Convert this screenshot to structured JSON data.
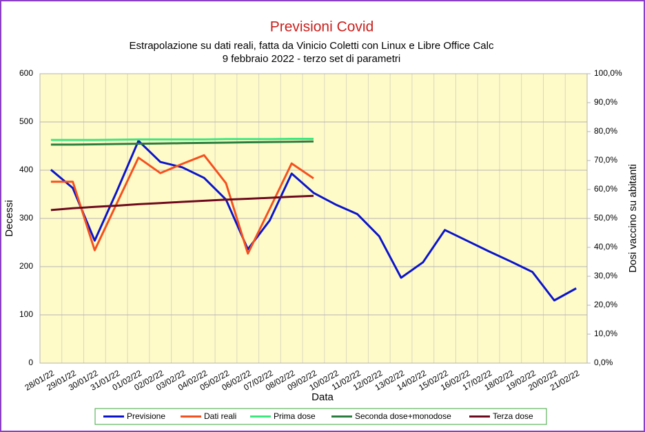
{
  "chart_data": {
    "type": "line",
    "title": "Previsioni Covid",
    "subtitle": "Estrapolazione su dati reali, fatta da Vinicio Coletti con Linux e Libre Office Calc",
    "subtitle2": "9 febbraio 2022 - terzo set di parametri",
    "x_label": "Data",
    "y_label": "Decessi",
    "y2_label": "Dosi vaccino su abitanti",
    "categories": [
      "28/01/22",
      "29/01/22",
      "30/01/22",
      "31/01/22",
      "01/02/22",
      "02/02/22",
      "03/02/22",
      "04/02/22",
      "05/02/22",
      "06/02/22",
      "07/02/22",
      "08/02/22",
      "09/02/22",
      "10/02/22",
      "11/02/22",
      "12/02/22",
      "13/02/22",
      "14/02/22",
      "15/02/22",
      "16/02/22",
      "17/02/22",
      "18/02/22",
      "19/02/22",
      "20/02/22",
      "21/02/22"
    ],
    "ylim": [
      0,
      600
    ],
    "yticks": [
      0,
      100,
      200,
      300,
      400,
      500,
      600
    ],
    "y2lim": [
      0,
      100
    ],
    "y2ticks": [
      {
        "value": 0,
        "label": "0,0%"
      },
      {
        "value": 10,
        "label": "10,0%"
      },
      {
        "value": 20,
        "label": "20,0%"
      },
      {
        "value": 30,
        "label": "30,0%"
      },
      {
        "value": 40,
        "label": "40,0%"
      },
      {
        "value": 50,
        "label": "50,0%"
      },
      {
        "value": 60,
        "label": "60,0%"
      },
      {
        "value": 70,
        "label": "70,0%"
      },
      {
        "value": 80,
        "label": "80,0%"
      },
      {
        "value": 90,
        "label": "90,0%"
      },
      {
        "value": 100,
        "label": "100,0%"
      }
    ],
    "grid": true,
    "legend": "bottom",
    "series": [
      {
        "name": "Previsione",
        "color": "#0a14cc",
        "values": [
          401,
          363,
          254,
          355,
          461,
          417,
          406,
          384,
          339,
          236,
          296,
          393,
          353,
          329,
          309,
          263,
          177,
          209,
          276,
          254,
          232,
          211,
          189,
          130,
          155
        ]
      },
      {
        "name": "Dati reali",
        "color": "#f5501e",
        "values": [
          376,
          376,
          234,
          330,
          426,
          394,
          413,
          431,
          373,
          227,
          320,
          414,
          383,
          null,
          null,
          null,
          null,
          null,
          null,
          null,
          null,
          null,
          null,
          null,
          null
        ]
      },
      {
        "name": "Prima dose",
        "color": "#3ee67e",
        "axis": "y2",
        "values": [
          77.1,
          77.1,
          77.1,
          77.2,
          77.3,
          77.3,
          77.3,
          77.3,
          77.4,
          77.4,
          77.4,
          77.5,
          77.5,
          null,
          null,
          null,
          null,
          null,
          null,
          null,
          null,
          null,
          null,
          null,
          null
        ]
      },
      {
        "name": "Seconda dose+monodose",
        "color": "#2a7d3c",
        "axis": "y2",
        "values": [
          75.5,
          75.5,
          75.6,
          75.7,
          75.8,
          75.9,
          76.0,
          76.1,
          76.2,
          76.3,
          76.4,
          76.5,
          76.6,
          null,
          null,
          null,
          null,
          null,
          null,
          null,
          null,
          null,
          null,
          null,
          null
        ]
      },
      {
        "name": "Terza dose",
        "color": "#6e0a1e",
        "axis": "y2",
        "values": [
          52.9,
          53.5,
          54.0,
          54.4,
          54.9,
          55.3,
          55.7,
          56.1,
          56.5,
          56.8,
          57.1,
          57.5,
          57.8,
          null,
          null,
          null,
          null,
          null,
          null,
          null,
          null,
          null,
          null,
          null,
          null
        ]
      }
    ]
  }
}
